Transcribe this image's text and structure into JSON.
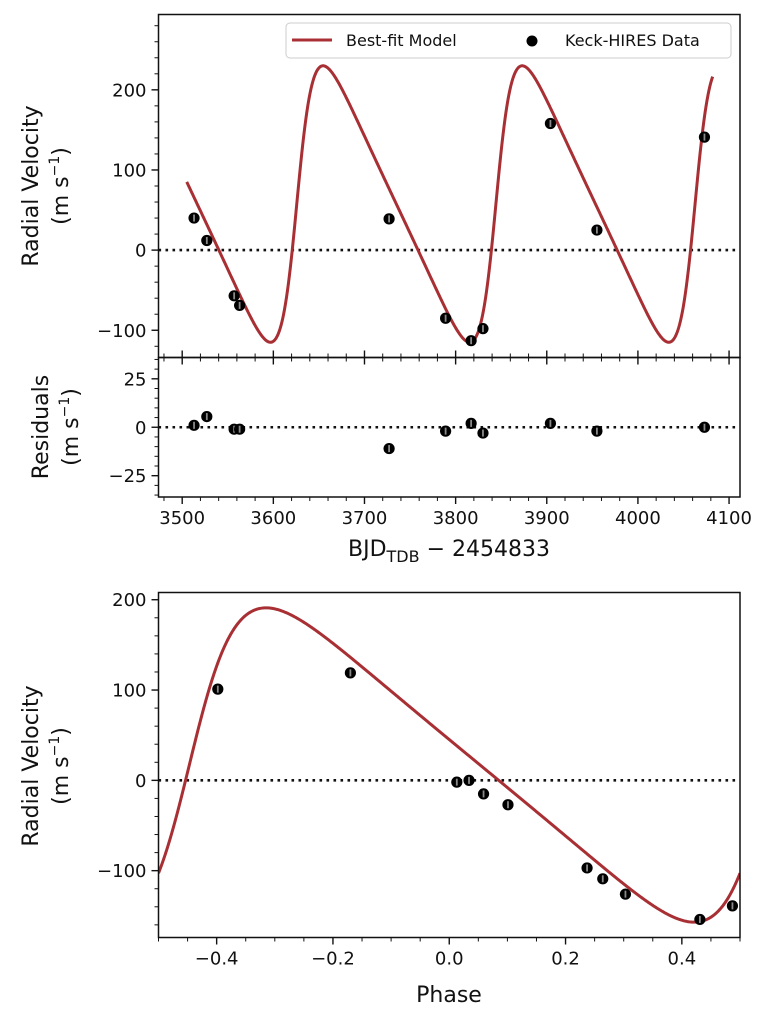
{
  "chart_data": [
    {
      "id": "rv_time",
      "type": "line",
      "ylabel_line1": "Radial Velocity",
      "ylabel_line2": "(m s",
      "ylabel_sup": "−1",
      "ylabel_close": ")",
      "xlim": [
        3474,
        4112
      ],
      "ylim": [
        -134,
        294
      ],
      "yticks": [
        -100,
        0,
        100,
        200
      ],
      "ytick_labels": [
        "−100",
        "0",
        "100",
        "200"
      ],
      "yminor_step": 20,
      "xticks": [
        3500,
        3600,
        3700,
        3800,
        3900,
        4000,
        4100
      ],
      "xminor_step": 20,
      "zero_line": 0,
      "legend": {
        "placement": "top-right",
        "entries": [
          {
            "label": "Best-fit Model",
            "kind": "line",
            "color": "#a83034"
          },
          {
            "label": "Keck-HIRES Data",
            "kind": "marker",
            "color": "#000000"
          }
        ]
      },
      "model": {
        "name": "Best-fit Model",
        "color": "#a83034",
        "x_range": [
          3505,
          4082
        ],
        "period": 218.5,
        "eccentricity": 0.38,
        "K": 172.5,
        "omega_deg": 270,
        "t_periastron": 3625.7,
        "gamma": 57.5
      },
      "series": [
        {
          "name": "Keck-HIRES Data",
          "x": [
            3513,
            3527,
            3557,
            3563,
            3727,
            3789,
            3817,
            3830,
            3904,
            3955,
            4073
          ],
          "y": [
            40,
            12,
            -57,
            -69,
            39,
            -85,
            -113,
            -98,
            158,
            25,
            141
          ]
        }
      ]
    },
    {
      "id": "residuals",
      "type": "scatter",
      "ylabel_line1": "Residuals",
      "ylabel_line2": "(m s",
      "ylabel_sup": "−1",
      "ylabel_close": ")",
      "xlabel_main": "BJD",
      "xlabel_sub": "TDB",
      "xlabel_rest": " − 2454833",
      "xlim": [
        3474,
        4112
      ],
      "ylim": [
        -36,
        36
      ],
      "xticks": [
        3500,
        3600,
        3700,
        3800,
        3900,
        4000,
        4100
      ],
      "xtick_labels": [
        "3500",
        "3600",
        "3700",
        "3800",
        "3900",
        "4000",
        "4100"
      ],
      "xminor_step": 20,
      "yticks": [
        -25,
        0,
        25
      ],
      "ytick_labels": [
        "−25",
        "0",
        "25"
      ],
      "yminor_step": 5,
      "zero_line": 0,
      "series": [
        {
          "name": "Residuals",
          "x": [
            3513,
            3527,
            3557,
            3563,
            3727,
            3789,
            3817,
            3830,
            3904,
            3955,
            4073
          ],
          "y": [
            1,
            5.5,
            -1,
            -1,
            -11,
            -2,
            2,
            -3,
            2,
            -2,
            0
          ]
        }
      ]
    },
    {
      "id": "rv_phase",
      "type": "line",
      "ylabel_line1": "Radial Velocity",
      "ylabel_line2": "(m s",
      "ylabel_sup": "−1",
      "ylabel_close": ")",
      "xlabel": "Phase",
      "xlim": [
        -0.5,
        0.5
      ],
      "ylim": [
        -174,
        208
      ],
      "xticks": [
        -0.4,
        -0.2,
        0.0,
        0.2,
        0.4
      ],
      "xtick_labels": [
        "−0.4",
        "−0.2",
        "0.0",
        "0.2",
        "0.4"
      ],
      "xminor_step": 0.05,
      "yticks": [
        -100,
        0,
        100,
        200
      ],
      "ytick_labels": [
        "−100",
        "0",
        "100",
        "200"
      ],
      "yminor_step": 20,
      "zero_line": 0,
      "model": {
        "name": "Best-fit Model",
        "color": "#a83034",
        "x_range": [
          -0.5,
          0.5
        ],
        "eccentricity": 0.38,
        "K": 174,
        "omega_deg": 270,
        "phase_periastron": -0.447,
        "gamma": 17
      },
      "series": [
        {
          "name": "Keck-HIRES Data (phased)",
          "x": [
            -0.398,
            -0.17,
            0.013,
            0.034,
            0.059,
            0.101,
            0.237,
            0.264,
            0.303,
            0.431,
            0.487
          ],
          "y": [
            101,
            119,
            -2,
            0,
            -15,
            -27,
            -97,
            -109,
            -126,
            -154,
            -139
          ]
        }
      ]
    }
  ]
}
